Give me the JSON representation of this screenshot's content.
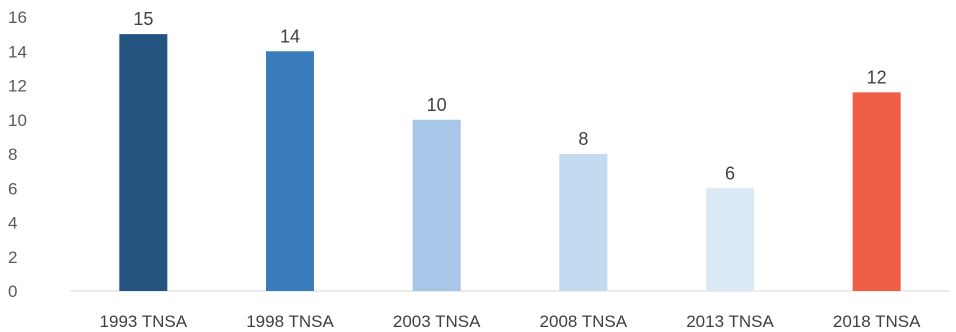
{
  "chart_data": {
    "type": "bar",
    "title": "",
    "xlabel": "",
    "ylabel": "",
    "categories": [
      "1993 TNSA",
      "1998 TNSA",
      "2003 TNSA",
      "2008 TNSA",
      "2013 TNSA",
      "2018 TNSA"
    ],
    "values": [
      15,
      14,
      10,
      8,
      6,
      11.6
    ],
    "data_labels": [
      "15",
      "14",
      "10",
      "8",
      "6",
      "12"
    ],
    "colors": [
      "#24537f",
      "#3a7dbd",
      "#a7c6e8",
      "#c3daf0",
      "#dbe9f7",
      "#f05f45"
    ],
    "ylim": [
      0,
      16
    ],
    "yticks": [
      "0",
      "2",
      "4",
      "6",
      "8",
      "10",
      "12",
      "14",
      "16"
    ],
    "grid": false,
    "legend": "none"
  }
}
